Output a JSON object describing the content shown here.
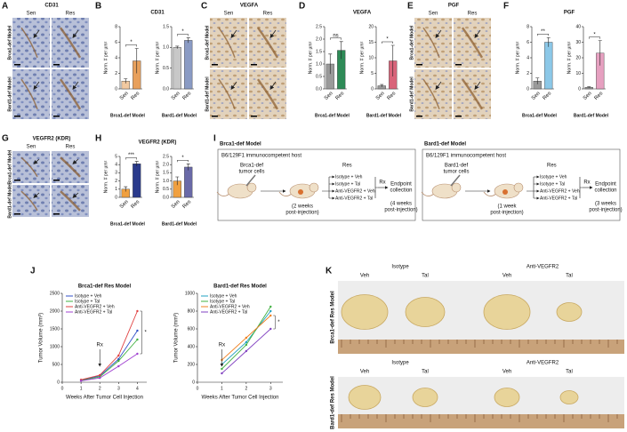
{
  "letters": [
    "A",
    "B",
    "C",
    "D",
    "E",
    "F",
    "G",
    "H",
    "I",
    "J",
    "K"
  ],
  "micrographs": [
    {
      "title": "CD31",
      "columns": [
        "Sen",
        "Res"
      ],
      "rows": [
        "Brca1-def Model",
        "Bard1-def Model"
      ]
    },
    {
      "title": "VEGFA",
      "columns": [
        "Sen",
        "Res"
      ],
      "rows": [
        "Brca1-def Model",
        "Bard1-def Model"
      ]
    },
    {
      "title": "PGF",
      "columns": [
        "Sen",
        "Res"
      ],
      "rows": [
        "Brca1-def Model",
        "Bard1-def Model"
      ]
    },
    {
      "title": "VEGFR2 (KDR)",
      "columns": [
        "Sen",
        "Res"
      ],
      "rows": [
        "Brca1-def Model",
        "Bard1-def Model"
      ]
    }
  ],
  "bar_titles": [
    "CD31",
    "VEGFA",
    "PGF",
    "VEGFR2 (KDR)"
  ],
  "chart_data": [
    {
      "type": "bar",
      "y_label": "Norm. # per µm²",
      "x_label": "Brca1-def Model",
      "categories": [
        "Sen",
        "Res"
      ],
      "values": [
        1,
        3.6
      ],
      "errors": [
        0.3,
        1.6
      ],
      "colors": [
        "#f2c9a0",
        "#e8a05c"
      ],
      "ylim": [
        0,
        8
      ],
      "yticks": [
        0,
        2,
        4,
        6,
        8
      ],
      "significance": "*"
    },
    {
      "type": "bar",
      "y_label": "Norm. # per µm²",
      "x_label": "Bard1-def Model",
      "categories": [
        "Sen",
        "Res"
      ],
      "values": [
        1.0,
        1.17
      ],
      "errors": [
        0.03,
        0.06
      ],
      "colors": [
        "#c8c8c8",
        "#8a9bc4"
      ],
      "ylim": [
        0,
        1.5
      ],
      "yticks": [
        {
          "value": 0,
          "label": "0.0"
        },
        0.5,
        {
          "value": 1,
          "label": "1.0"
        },
        1.5
      ],
      "significance": "*"
    },
    {
      "type": "bar",
      "y_label": "Norm. # per µm²",
      "x_label": "Brca1-def Model",
      "categories": [
        "Sen",
        "Res"
      ],
      "values": [
        1.0,
        1.55
      ],
      "errors": [
        0.4,
        0.35
      ],
      "colors": [
        "#9a9a9a",
        "#2e8b57"
      ],
      "ylim": [
        0,
        2.5
      ],
      "yticks": [
        {
          "value": 0,
          "label": "0.0"
        },
        0.5,
        {
          "value": 1,
          "label": "1.0"
        },
        1.5,
        {
          "value": 2,
          "label": "2.0"
        },
        2.5
      ],
      "significance": "ns"
    },
    {
      "type": "bar",
      "y_label": "Norm. # per µm²",
      "x_label": "Bard1-def Model",
      "categories": [
        "Sen",
        "Res"
      ],
      "values": [
        1,
        9
      ],
      "errors": [
        0.4,
        5
      ],
      "colors": [
        "#9a9a9a",
        "#d9647a"
      ],
      "ylim": [
        0,
        20
      ],
      "yticks": [
        0,
        5,
        10,
        15,
        20
      ],
      "significance": "*"
    },
    {
      "type": "bar",
      "y_label": "Norm. # per µm²",
      "x_label": "Brca1-def Model",
      "categories": [
        "Sen",
        "Res"
      ],
      "values": [
        1,
        6
      ],
      "errors": [
        0.4,
        0.6
      ],
      "colors": [
        "#9a9a9a",
        "#8cc8e8"
      ],
      "ylim": [
        0,
        8
      ],
      "yticks": [
        0,
        2,
        4,
        6,
        8
      ],
      "significance": "**"
    },
    {
      "type": "bar",
      "y_label": "Norm. # per µm²",
      "x_label": "Bard1-def Model",
      "categories": [
        "Sen",
        "Res"
      ],
      "values": [
        1,
        23
      ],
      "errors": [
        0.3,
        8
      ],
      "colors": [
        "#9a9a9a",
        "#e6a0c0"
      ],
      "ylim": [
        0,
        40
      ],
      "yticks": [
        0,
        10,
        20,
        30,
        40
      ],
      "significance": "*"
    },
    {
      "type": "bar",
      "y_label": "Norm. # per µm²",
      "x_label": "Brca1-def Model",
      "categories": [
        "Sen",
        "Res"
      ],
      "values": [
        1,
        4.1
      ],
      "errors": [
        0.3,
        0.3
      ],
      "colors": [
        "#f0a040",
        "#2a3a8c"
      ],
      "ylim": [
        0,
        5
      ],
      "yticks": [
        0,
        1,
        2,
        3,
        4,
        5
      ],
      "significance": "***"
    },
    {
      "type": "bar",
      "y_label": "Norm. # per µm²",
      "x_label": "Bard1-def Model",
      "categories": [
        "Sen",
        "Res"
      ],
      "values": [
        1,
        1.85
      ],
      "errors": [
        0.25,
        0.2
      ],
      "colors": [
        "#f0a040",
        "#6a6aa8"
      ],
      "ylim": [
        0,
        2.5
      ],
      "yticks": [
        {
          "value": 0,
          "label": "0.0"
        },
        0.5,
        {
          "value": 1,
          "label": "1.0"
        },
        1.5,
        {
          "value": 2,
          "label": "2.0"
        },
        2.5
      ],
      "significance": "*"
    },
    {
      "type": "line",
      "title": "Brca1-def Res Model",
      "y_label": "Tumor Volume (mm³)",
      "x_label": "Weeks After Tumor Cell Injection",
      "x": [
        1,
        2,
        3,
        4
      ],
      "xlim": [
        0,
        4.5
      ],
      "xticks": [
        0,
        1,
        2,
        3,
        4
      ],
      "ylim": [
        0,
        2500
      ],
      "yticks": [
        0,
        500,
        1000,
        1500,
        2000,
        2500
      ],
      "legend": "upper left",
      "annotations": [
        "Rx",
        "*"
      ],
      "series": [
        {
          "name": "Isotype + Veh",
          "color": "#3050c8",
          "values": [
            60,
            180,
            650,
            1450
          ]
        },
        {
          "name": "Isotype + Tal",
          "color": "#40b040",
          "values": [
            50,
            150,
            600,
            1200
          ]
        },
        {
          "name": "Anti-VEGFR2 + Veh",
          "color": "#e04040",
          "values": [
            70,
            200,
            750,
            2000
          ]
        },
        {
          "name": "Anti-VEGFR2 + Tal",
          "color": "#a040d0",
          "values": [
            40,
            120,
            450,
            800
          ]
        }
      ]
    },
    {
      "type": "line",
      "title": "Bard1-def Res Model",
      "y_label": "Tumor Volume (mm³)",
      "x_label": "Weeks After Tumor Cell Injection",
      "x": [
        1,
        2,
        3
      ],
      "xlim": [
        0,
        3.5
      ],
      "xticks": [
        0,
        1,
        2,
        3
      ],
      "ylim": [
        0,
        1000
      ],
      "yticks": [
        0,
        200,
        400,
        600,
        800,
        1000
      ],
      "legend": "upper left",
      "annotations": [
        "Rx",
        "*"
      ],
      "series": [
        {
          "name": "Isotype + Veh",
          "color": "#20a0c0",
          "values": [
            200,
            450,
            800
          ]
        },
        {
          "name": "Isotype + Tal",
          "color": "#40b040",
          "values": [
            150,
            420,
            850
          ]
        },
        {
          "name": "Anti-VEGFR2 + Veh",
          "color": "#f08020",
          "values": [
            250,
            500,
            750
          ]
        },
        {
          "name": "Anti-VEGFR2 + Tal",
          "color": "#8040c0",
          "values": [
            100,
            350,
            600
          ]
        }
      ]
    }
  ],
  "schematic": [
    {
      "model": "Brca1-def Model",
      "host": "B6/129F1 immunocompetent host",
      "cells": [
        "Brca1-def",
        "tumor cells"
      ],
      "group": "Res",
      "arms": [
        "Isotype + Veh",
        "Isotype + Tal",
        "Anti-VEGFR2 + Veh",
        "Anti-VEGFR2 + Tal"
      ],
      "rx": "Rx",
      "endpoint": [
        "Endpoint",
        "collection"
      ],
      "first_time": [
        "(2 weeks",
        "post-injection)"
      ],
      "end_time": [
        "(4 weeks",
        "post-injection)"
      ]
    },
    {
      "model": "Bard1-def Model",
      "host": "B6/129F1 immunocompetent host",
      "cells": [
        "Bard1-def",
        "tumor cells"
      ],
      "group": "Res",
      "arms": [
        "Isotype + Veh",
        "Isotype + Tal",
        "Anti-VEGFR2 + Veh",
        "Anti-VEGFR2 + Tal"
      ],
      "rx": "Rx",
      "endpoint": [
        "Endpoint",
        "collection"
      ],
      "first_time": [
        "(1 week",
        "post-injection)"
      ],
      "end_time": [
        "(3 weeks",
        "post-injection)"
      ]
    }
  ],
  "photos": [
    {
      "model": "Brca1-def Res Model",
      "groups": [
        "Isotype",
        "Anti-VEGFR2"
      ],
      "arms": [
        "Veh",
        "Tal",
        "Veh",
        "Tal"
      ]
    },
    {
      "model": "Bard1-def Res Model",
      "groups": [
        "Isotype",
        "Anti-VEGFR2"
      ],
      "arms": [
        "Veh",
        "Tal",
        "Veh",
        "Tal"
      ]
    }
  ]
}
